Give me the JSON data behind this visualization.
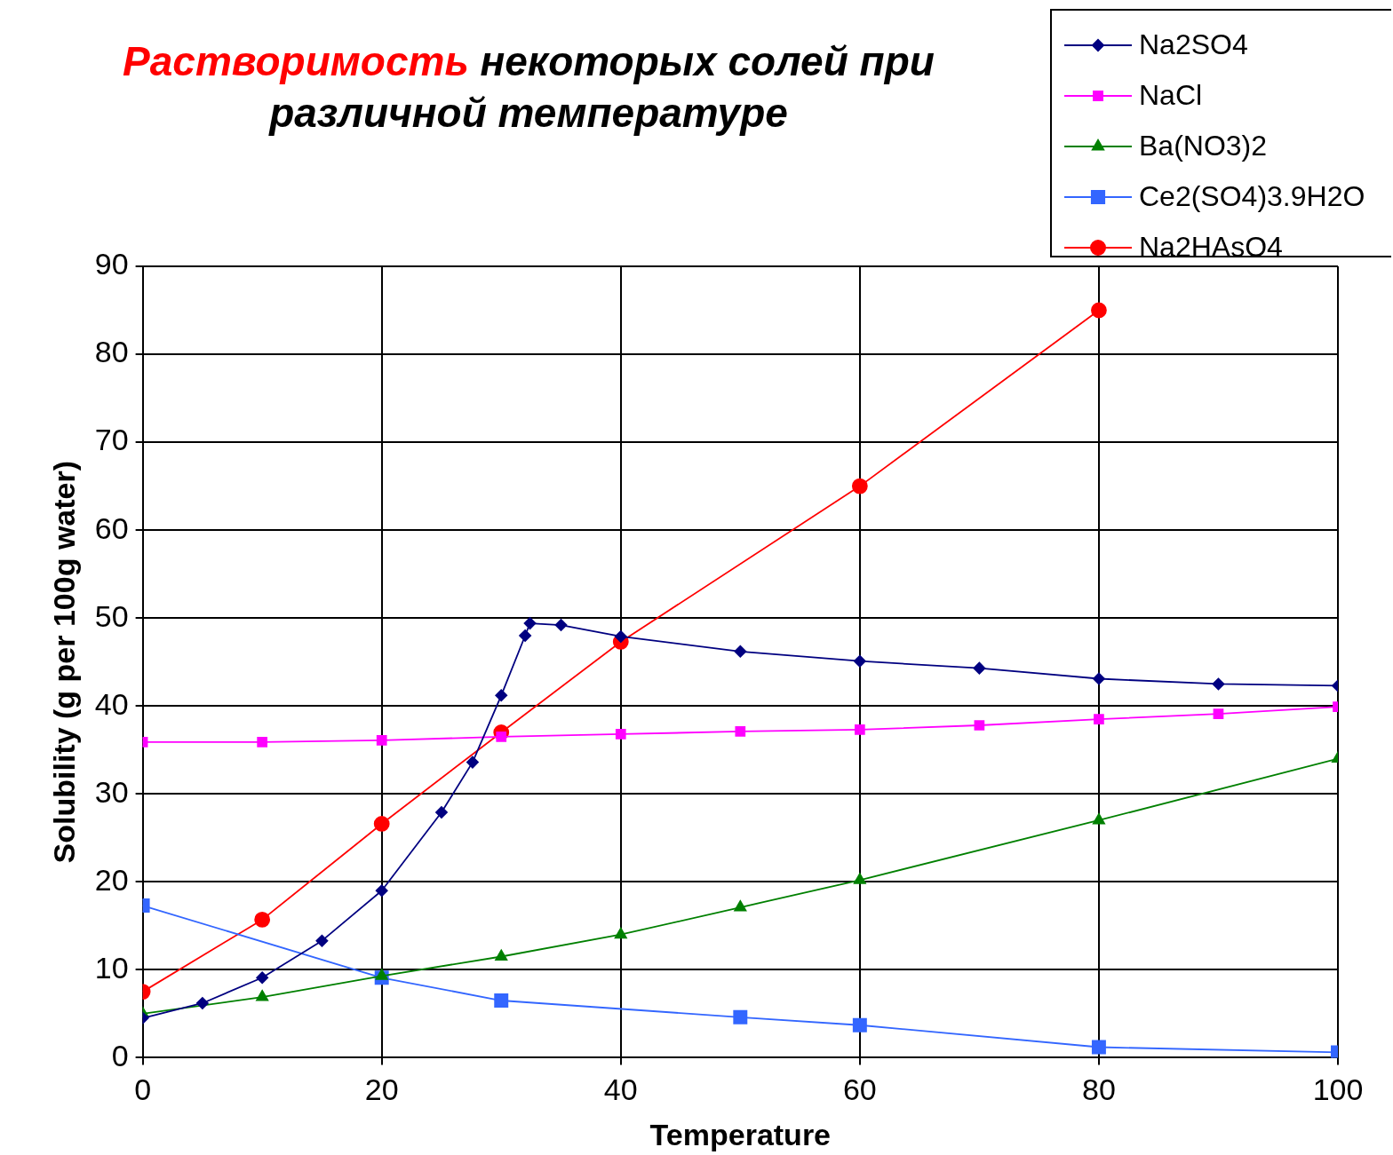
{
  "chart_data": {
    "type": "line",
    "title": "Растворимость некоторых солей при различной температуре",
    "xlabel": "Temperature",
    "ylabel": "Solubility (g per 100g water)",
    "xlim": [
      0,
      100
    ],
    "xticks": [
      0,
      20,
      40,
      60,
      80,
      100
    ],
    "ylim": [
      0,
      90
    ],
    "yticks": [
      0,
      10,
      20,
      30,
      40,
      50,
      60,
      70,
      80,
      90
    ],
    "grid": true,
    "legend": "top right",
    "series": [
      {
        "name": "Na2SO4",
        "color": "#000080",
        "marker": "diamond",
        "x": [
          0,
          5,
          10,
          15,
          20,
          25,
          27.6,
          30,
          32,
          32.4,
          35,
          40,
          50,
          60,
          70,
          80,
          90,
          100
        ],
        "values": [
          4.5,
          6.2,
          9.1,
          13.3,
          19.0,
          27.9,
          33.6,
          41.2,
          48.0,
          49.4,
          49.2,
          47.9,
          46.2,
          45.1,
          44.3,
          43.1,
          42.5,
          42.3
        ]
      },
      {
        "name": "NaCl",
        "color": "#ff00ff",
        "marker": "square",
        "x": [
          0,
          10,
          20,
          30,
          40,
          50,
          60,
          70,
          80,
          90,
          100
        ],
        "values": [
          35.9,
          35.9,
          36.1,
          36.5,
          36.8,
          37.1,
          37.3,
          37.8,
          38.5,
          39.1,
          39.9
        ]
      },
      {
        "name": "Ba(NO3)2",
        "color": "#008000",
        "marker": "triangle",
        "x": [
          0,
          10,
          20,
          30,
          40,
          50,
          60,
          80,
          100
        ],
        "values": [
          5.0,
          6.9,
          9.3,
          11.5,
          14.0,
          17.1,
          20.2,
          27.0,
          34.0
        ]
      },
      {
        "name": "Ce2(SO4)3.9H2O",
        "color": "#3366ff",
        "marker": "square",
        "x": [
          0,
          20,
          30,
          50,
          60,
          80,
          100
        ],
        "values": [
          17.3,
          9.1,
          6.5,
          4.6,
          3.7,
          1.2,
          0.6
        ]
      },
      {
        "name": "Na2HAsO4",
        "color": "#ff0000",
        "marker": "circle",
        "x": [
          0,
          10,
          20,
          30,
          40,
          60,
          80
        ],
        "values": [
          7.5,
          15.7,
          26.6,
          37.0,
          47.3,
          65.0,
          85.0
        ]
      }
    ]
  }
}
